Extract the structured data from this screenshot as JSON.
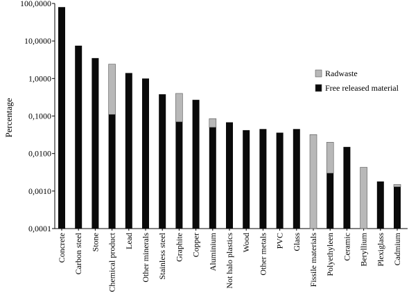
{
  "chart_data": {
    "type": "bar",
    "stacked": true,
    "scale": "log",
    "ylabel": "Percentage",
    "xlabel": "",
    "ylim": [
      0.0001,
      100
    ],
    "yticks": [
      {
        "value": 100,
        "label": "100,0000"
      },
      {
        "value": 10,
        "label": "10,0000"
      },
      {
        "value": 1,
        "label": "1,0000"
      },
      {
        "value": 0.1,
        "label": "0,1000"
      },
      {
        "value": 0.01,
        "label": "0,0100"
      },
      {
        "value": 0.001,
        "label": "0,0010"
      },
      {
        "value": 0.0001,
        "label": "0,0001"
      }
    ],
    "grid": false,
    "legend_position": "right",
    "categories": [
      "Concrete",
      "Carbon steel",
      "Stone",
      "Chemical product",
      "Lead",
      "Other minerals",
      "Stainless steel",
      "Graphite",
      "Copper",
      "Aluminium",
      "Not halo plastics",
      "Wood",
      "Other metals",
      "PVC",
      "Glass",
      "Fissile materials",
      "Polyethyleen",
      "Ceramic",
      "Beryllium",
      "Plexiglass",
      "Cadmium"
    ],
    "series": [
      {
        "name": "Free released material",
        "color": "#0a0a0a",
        "values": [
          80,
          7.5,
          3.5,
          0.11,
          1.4,
          1.0,
          0.38,
          0.07,
          0.27,
          0.05,
          0.068,
          0.042,
          0.045,
          0.036,
          0.045,
          0,
          0.003,
          0.015,
          0,
          0.0018,
          0.0013
        ]
      },
      {
        "name": "Radwaste",
        "color": "#b8b8b8",
        "values": [
          0,
          0,
          0,
          2.3,
          0,
          0,
          0,
          0.33,
          0,
          0.035,
          0,
          0,
          0,
          0,
          0,
          0.032,
          0.017,
          0,
          0.0043,
          0,
          0.0002
        ]
      }
    ]
  }
}
